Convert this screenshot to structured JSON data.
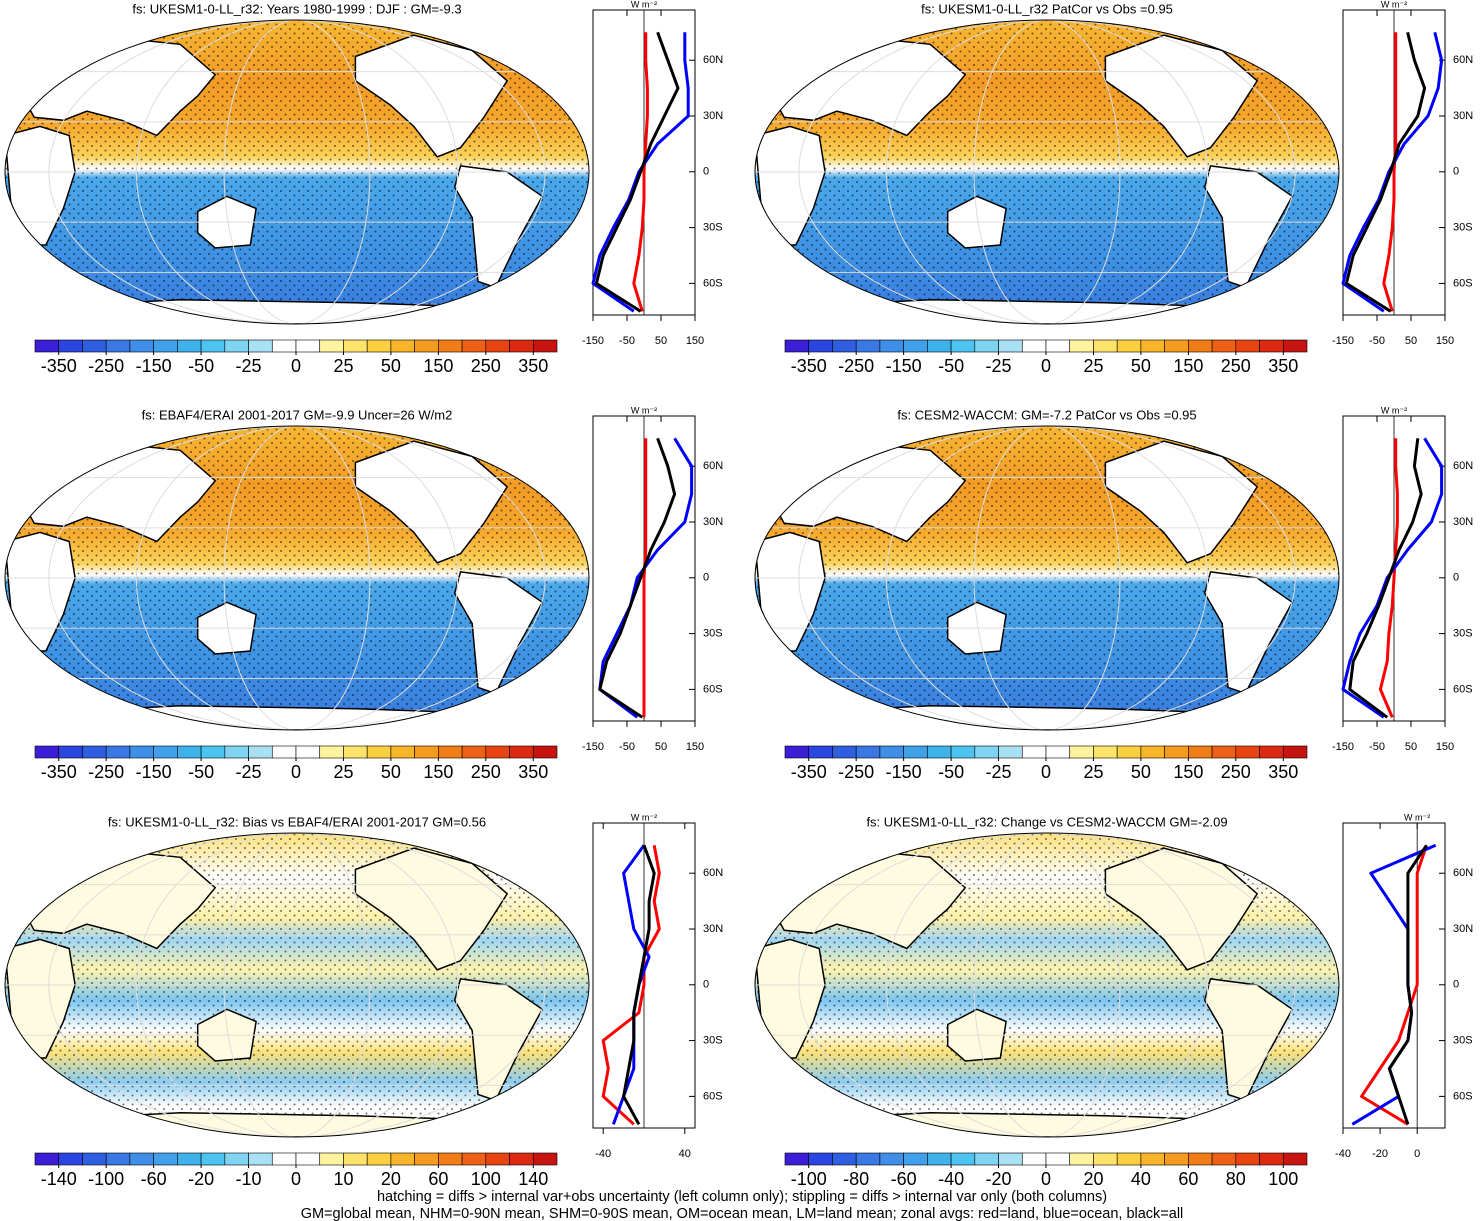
{
  "chart_data": [
    {
      "type": "map",
      "title": "fs: UKESM1-0-LL_r32: Years 1980-1999 : DJF : GM=-9.3",
      "levels": [
        -350,
        -250,
        -150,
        -50,
        -25,
        0,
        25,
        50,
        150,
        250,
        350
      ],
      "unit": "W m⁻²",
      "xlim": [
        -150,
        150
      ],
      "xticks": [
        -150,
        -50,
        50,
        150
      ],
      "ylim": [
        -77,
        87
      ],
      "yticks": [
        {
          "value": 60,
          "label": "60N"
        },
        {
          "value": 30,
          "label": "30N"
        },
        0,
        {
          "value": -30,
          "label": "30S"
        },
        {
          "value": -60,
          "label": "60S"
        }
      ],
      "y": [
        75,
        60,
        45,
        30,
        15,
        0,
        -15,
        -30,
        -45,
        -60,
        -75
      ],
      "series": [
        {
          "color": "#ff0000",
          "values": [
            5,
            5,
            10,
            10,
            5,
            0,
            0,
            -5,
            -15,
            -30,
            -5
          ]
        },
        {
          "color": "#0000ff",
          "values": [
            120,
            120,
            130,
            130,
            40,
            -15,
            -45,
            -90,
            -130,
            -150,
            -30
          ]
        },
        {
          "color": "#000000",
          "values": [
            40,
            70,
            100,
            60,
            20,
            -10,
            -40,
            -80,
            -120,
            -140,
            -10
          ]
        }
      ]
    },
    {
      "type": "map",
      "title": "fs: UKESM1-0-LL_r32 PatCor vs Obs =0.95",
      "levels": [
        -350,
        -250,
        -150,
        -50,
        -25,
        0,
        25,
        50,
        150,
        250,
        350
      ],
      "unit": "W m⁻²",
      "xlim": [
        -150,
        150
      ],
      "xticks": [
        -150,
        -50,
        50,
        150
      ],
      "ylim": [
        -77,
        87
      ],
      "yticks": [
        {
          "value": 60,
          "label": "60N"
        },
        {
          "value": 30,
          "label": "30N"
        },
        0,
        {
          "value": -30,
          "label": "30S"
        },
        {
          "value": -60,
          "label": "60S"
        }
      ],
      "y": [
        75,
        60,
        45,
        30,
        15,
        0,
        -15,
        -30,
        -45,
        -60,
        -75
      ],
      "series": [
        {
          "color": "#ff0000",
          "values": [
            5,
            5,
            5,
            5,
            5,
            0,
            0,
            -5,
            -15,
            -30,
            -5
          ]
        },
        {
          "color": "#0000ff",
          "values": [
            120,
            140,
            130,
            100,
            30,
            -15,
            -45,
            -90,
            -130,
            -150,
            -30
          ]
        },
        {
          "color": "#000000",
          "values": [
            40,
            60,
            90,
            70,
            15,
            -10,
            -40,
            -80,
            -120,
            -140,
            -10
          ]
        }
      ]
    },
    {
      "type": "map",
      "title": "fs: EBAF4/ERAI 2001-2017 GM=-9.9 Uncer=26 W/m2",
      "levels": [
        -350,
        -250,
        -150,
        -50,
        -25,
        0,
        25,
        50,
        150,
        250,
        350
      ],
      "unit": "W m⁻²",
      "xlim": [
        -150,
        150
      ],
      "xticks": [
        -150,
        -50,
        50,
        150
      ],
      "ylim": [
        -77,
        87
      ],
      "yticks": [
        {
          "value": 60,
          "label": "60N"
        },
        {
          "value": 30,
          "label": "30N"
        },
        0,
        {
          "value": -30,
          "label": "30S"
        },
        {
          "value": -60,
          "label": "60S"
        }
      ],
      "y": [
        75,
        60,
        45,
        30,
        15,
        0,
        -15,
        -30,
        -45,
        -60,
        -75
      ],
      "series": [
        {
          "color": "#ff0000",
          "values": [
            5,
            5,
            5,
            5,
            5,
            0,
            0,
            0,
            0,
            0,
            0
          ]
        },
        {
          "color": "#0000ff",
          "values": [
            90,
            140,
            140,
            120,
            40,
            -20,
            -40,
            -80,
            -120,
            -130,
            -20
          ]
        },
        {
          "color": "#000000",
          "values": [
            40,
            70,
            90,
            60,
            20,
            -10,
            -40,
            -70,
            -110,
            -130,
            -5
          ]
        }
      ]
    },
    {
      "type": "map",
      "title": "fs: CESM2-WACCM: GM=-7.2 PatCor vs Obs =0.95",
      "levels": [
        -350,
        -250,
        -150,
        -50,
        -25,
        0,
        25,
        50,
        150,
        250,
        350
      ],
      "unit": "W m⁻²",
      "xlim": [
        -150,
        150
      ],
      "xticks": [
        -150,
        -50,
        50,
        150
      ],
      "ylim": [
        -77,
        87
      ],
      "yticks": [
        {
          "value": 60,
          "label": "60N"
        },
        {
          "value": 30,
          "label": "30N"
        },
        0,
        {
          "value": -30,
          "label": "30S"
        },
        {
          "value": -60,
          "label": "60S"
        }
      ],
      "y": [
        75,
        60,
        45,
        30,
        15,
        0,
        -15,
        -30,
        -45,
        -60,
        -75
      ],
      "series": [
        {
          "color": "#ff0000",
          "values": [
            5,
            5,
            10,
            10,
            5,
            0,
            -5,
            -15,
            -20,
            -40,
            -5
          ]
        },
        {
          "color": "#0000ff",
          "values": [
            90,
            140,
            140,
            110,
            40,
            -20,
            -50,
            -100,
            -130,
            -150,
            -30
          ]
        },
        {
          "color": "#000000",
          "values": [
            70,
            60,
            80,
            55,
            15,
            -15,
            -45,
            -80,
            -120,
            -130,
            -20
          ]
        }
      ]
    },
    {
      "type": "map",
      "title": "fs: UKESM1-0-LL_r32: Bias vs EBAF4/ERAI 2001-2017 GM=0.56",
      "levels": [
        -140,
        -100,
        -60,
        -20,
        -10,
        0,
        10,
        20,
        60,
        100,
        140
      ],
      "unit": "W m⁻²",
      "xlim": [
        -50,
        50
      ],
      "xticks": [
        -40,
        40
      ],
      "ylim": [
        -77,
        87
      ],
      "yticks": [
        {
          "value": 60,
          "label": "60N"
        },
        {
          "value": 30,
          "label": "30N"
        },
        0,
        {
          "value": -30,
          "label": "30S"
        },
        {
          "value": -60,
          "label": "60S"
        }
      ],
      "y": [
        75,
        60,
        45,
        30,
        15,
        0,
        -15,
        -30,
        -45,
        -60,
        -75
      ],
      "series": [
        {
          "color": "#ff0000",
          "values": [
            10,
            15,
            10,
            15,
            0,
            0,
            -5,
            -40,
            -35,
            -40,
            -10
          ]
        },
        {
          "color": "#0000ff",
          "values": [
            0,
            -20,
            -15,
            -10,
            5,
            -5,
            -10,
            -10,
            -10,
            -20,
            -30
          ]
        },
        {
          "color": "#000000",
          "values": [
            0,
            10,
            5,
            5,
            0,
            -5,
            -10,
            -10,
            -15,
            -20,
            -5
          ]
        }
      ]
    },
    {
      "type": "map",
      "title": "fs: UKESM1-0-LL_r32: Change vs CESM2-WACCM GM=-2.09",
      "levels": [
        -100,
        -80,
        -60,
        -40,
        -20,
        0,
        20,
        40,
        60,
        80,
        100
      ],
      "unit": "W m⁻²",
      "xlim": [
        -40,
        15
      ],
      "xticks": [
        -40,
        -20,
        0
      ],
      "ylim": [
        -77,
        87
      ],
      "yticks": [
        {
          "value": 60,
          "label": "60N"
        },
        {
          "value": 30,
          "label": "30N"
        },
        0,
        {
          "value": -30,
          "label": "30S"
        },
        {
          "value": -60,
          "label": "60S"
        }
      ],
      "y": [
        75,
        60,
        45,
        30,
        15,
        0,
        -15,
        -30,
        -45,
        -60,
        -75
      ],
      "series": [
        {
          "color": "#ff0000",
          "values": [
            5,
            0,
            0,
            0,
            0,
            0,
            -5,
            -10,
            -20,
            -30,
            -5
          ]
        },
        {
          "color": "#0000ff",
          "values": [
            10,
            -25,
            -15,
            -5,
            -5,
            -5,
            -3,
            -5,
            -15,
            -10,
            -35
          ]
        },
        {
          "color": "#000000",
          "values": [
            5,
            -5,
            -5,
            -5,
            -5,
            -5,
            -3,
            -5,
            -15,
            -10,
            -5
          ]
        }
      ]
    }
  ],
  "footer": [
    "hatching = diffs > internal var+obs uncertainty (left column only); stippling = diffs > internal var only (both columns)",
    "GM=global mean, NHM=0-90N mean, SHM=0-90S mean, OM=ocean mean, LM=land mean; zonal avgs: red=land, blue=ocean, black=all"
  ]
}
